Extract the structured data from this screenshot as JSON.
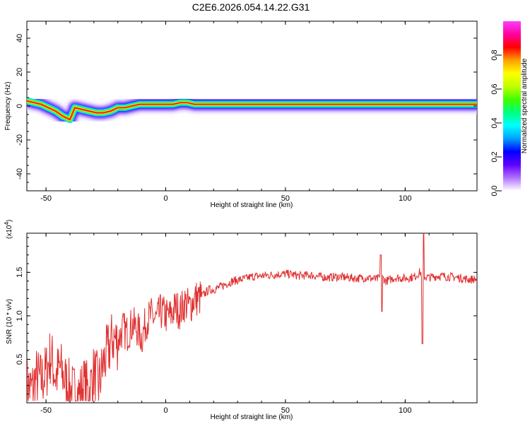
{
  "title": "C2E6.2026.054.14.22.G31",
  "colors": {
    "snr_line": "#e03030",
    "frame": "#000000",
    "background": "#ffffff"
  },
  "chart_data": [
    {
      "type": "heatmap",
      "title": "C2E6.2026.054.14.22.G31",
      "xlabel": "Height of straight line (km)",
      "ylabel": "Frequency (Hz)",
      "xlim": [
        -58,
        130
      ],
      "ylim": [
        -50,
        50
      ],
      "xticks": [
        -50,
        0,
        50,
        100
      ],
      "yticks": [
        -40,
        -20,
        0,
        20,
        40
      ],
      "colorbar": {
        "label": "Normalized spectral amplitude",
        "range": [
          0,
          1
        ],
        "ticks": [
          "0.0",
          "0.2",
          "0.4",
          "0.6",
          "0.8"
        ],
        "colormap": [
          "#ffffff",
          "#b070ff",
          "#6000ff",
          "#0000ff",
          "#00a0ff",
          "#00ffff",
          "#00ff80",
          "#40ff00",
          "#c0ff00",
          "#ffff00",
          "#ffa000",
          "#ff0000",
          "#ff00a0",
          "#ff40ff"
        ]
      },
      "ridge": {
        "x": [
          -58,
          -55,
          -52,
          -49,
          -46,
          -43,
          -40,
          -38,
          -35,
          -32,
          -29,
          -26,
          -23,
          -20,
          -17,
          -14,
          -11,
          -8,
          -5,
          -2,
          0,
          3,
          6,
          9,
          12,
          15,
          20,
          30,
          40,
          50,
          60,
          70,
          80,
          90,
          100,
          105,
          108,
          115,
          130
        ],
        "y": [
          3,
          2,
          1,
          -1,
          -3,
          -6,
          -8,
          -1,
          -2,
          -3,
          -4,
          -4,
          -3,
          -1,
          -1,
          0,
          1,
          1,
          1,
          1,
          1,
          1,
          2,
          2,
          1,
          1,
          1,
          1,
          1,
          1,
          1,
          1,
          1,
          1,
          1,
          1,
          1,
          1,
          1
        ]
      }
    },
    {
      "type": "line",
      "xlabel": "Height of straight line (km)",
      "ylabel": "SNR (10 * v/v)",
      "scale_note": "(x10",
      "scale_exp": "4",
      "scale_close": ")",
      "xlim": [
        -58,
        130
      ],
      "ylim": [
        0,
        1.95
      ],
      "xticks": [
        -50,
        0,
        50,
        100
      ],
      "yticks": [
        "0.5",
        "1.0",
        "1.5"
      ],
      "series": [
        {
          "x": [
            -58,
            -56,
            -54,
            -52,
            -50,
            -48,
            -46,
            -44,
            -42,
            -40,
            -38,
            -36,
            -34,
            -32,
            -30,
            -28,
            -26,
            -24,
            -22,
            -20,
            -18,
            -16,
            -14,
            -12,
            -10,
            -8,
            -6,
            -4,
            -2,
            0,
            2,
            4,
            6,
            8,
            10,
            12,
            14,
            16,
            18,
            20,
            24,
            28,
            32,
            36,
            40,
            44,
            48,
            52,
            56,
            60,
            64,
            68,
            72,
            76,
            80,
            84,
            88,
            90,
            92,
            96,
            100,
            104,
            106,
            108,
            110,
            114,
            118,
            122,
            126,
            130
          ],
          "y": [
            0.2,
            0.15,
            0.3,
            0.25,
            0.35,
            0.55,
            0.3,
            0.4,
            0.25,
            0.15,
            0.1,
            0.1,
            0.2,
            0.12,
            0.35,
            0.2,
            0.45,
            0.6,
            0.75,
            0.7,
            0.85,
            0.8,
            0.9,
            0.85,
            0.75,
            0.95,
            1.0,
            0.95,
            1.05,
            1.0,
            1.0,
            1.1,
            1.05,
            1.15,
            1.1,
            1.2,
            1.2,
            1.25,
            1.3,
            1.3,
            1.35,
            1.4,
            1.42,
            1.45,
            1.46,
            1.47,
            1.48,
            1.48,
            1.46,
            1.47,
            1.45,
            1.44,
            1.45,
            1.44,
            1.43,
            1.44,
            1.42,
            1.45,
            1.4,
            1.44,
            1.43,
            1.45,
            1.5,
            1.45,
            1.44,
            1.46,
            1.45,
            1.44,
            1.42,
            1.42
          ]
        }
      ]
    }
  ]
}
